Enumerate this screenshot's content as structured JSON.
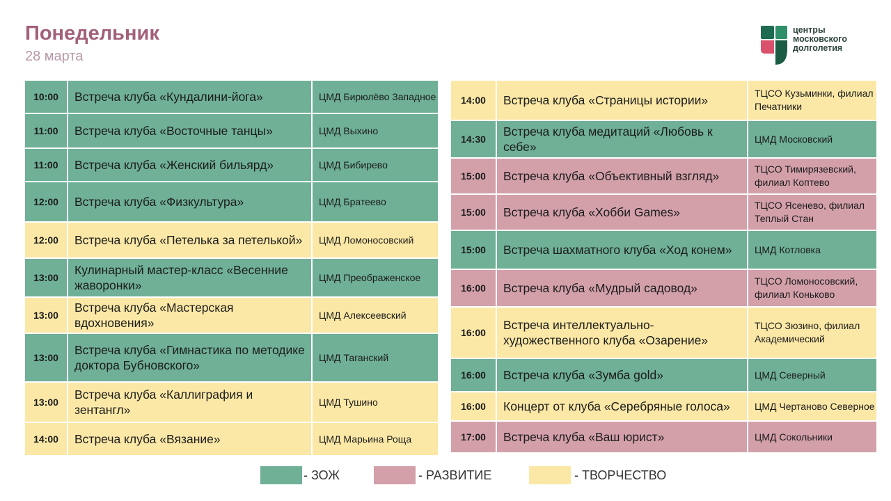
{
  "header": {
    "day": "Понедельник",
    "date": "28 марта"
  },
  "logo": {
    "line1": "центры",
    "line2": "московского",
    "line3": "долголетия"
  },
  "colors": {
    "zozh": "#6fb097",
    "razvitie": "#d3a0aa",
    "tvorchestvo": "#fbe8a6",
    "title": "#a2607a"
  },
  "left_schedule": [
    {
      "time": "10:00",
      "event": "Встреча клуба «Кундалини-йога»",
      "place": "ЦМД Бирюлёво Западное",
      "category": "zozh"
    },
    {
      "time": "11:00",
      "event": "Встреча клуба «Восточные танцы»",
      "place": "ЦМД Выхино",
      "category": "zozh"
    },
    {
      "time": "11:00",
      "event": "Встреча клуба «Женский бильярд»",
      "place": "ЦМД Бибирево",
      "category": "zozh"
    },
    {
      "time": "12:00",
      "event": "Встреча клуба «Физкультура»",
      "place": "ЦМД Братеево",
      "category": "zozh"
    },
    {
      "time": "12:00",
      "event": "Встреча клуба «Петелька за петелькой»",
      "place": "ЦМД Ломоносовский",
      "category": "tvorchestvo"
    },
    {
      "time": "13:00",
      "event": "Кулинарный мастер-класс «Весенние жаворонки»",
      "place": "ЦМД Преображенское",
      "category": "zozh"
    },
    {
      "time": "13:00",
      "event": "Встреча клуба «Мастерская вдохновения»",
      "place": "ЦМД Алексеевский",
      "category": "tvorchestvo"
    },
    {
      "time": "13:00",
      "event": "Встреча клуба «Гимнастика по методике доктора Бубновского»",
      "place": "ЦМД Таганский",
      "category": "zozh"
    },
    {
      "time": "13:00",
      "event": "Встреча клуба «Каллиграфия и зентангл»",
      "place": "ЦМД Тушино",
      "category": "tvorchestvo"
    },
    {
      "time": "14:00",
      "event": "Встреча клуба «Вязание»",
      "place": "ЦМД Марьина Роща",
      "category": "tvorchestvo"
    }
  ],
  "right_schedule": [
    {
      "time": "14:00",
      "event": "Встреча клуба «Страницы истории»",
      "place": "ТЦСО Кузьминки, филиал Печатники",
      "category": "tvorchestvo"
    },
    {
      "time": "14:30",
      "event": "Встреча клуба медитаций «Любовь к себе»",
      "place": "ЦМД Московский",
      "category": "zozh"
    },
    {
      "time": "15:00",
      "event": "Встреча клуба «Объективный взгляд»",
      "place": "ТЦСО Тимирязевский, филиал Коптево",
      "category": "razvitie"
    },
    {
      "time": "15:00",
      "event": "Встреча клуба «Хобби Games»",
      "place": "ТЦСО Ясенево, филиал Теплый Стан",
      "category": "razvitie"
    },
    {
      "time": "15:00",
      "event": "Встреча шахматного клуба «Ход конем»",
      "place": "ЦМД Котловка",
      "category": "zozh"
    },
    {
      "time": "16:00",
      "event": "Встреча клуба «Мудрый садовод»",
      "place": "ТЦСО Ломоносовский, филиал Коньково",
      "category": "razvitie"
    },
    {
      "time": "16:00",
      "event": "Встреча интеллектуально-художественного клуба «Озарение»",
      "place": "ТЦСО Зюзино, филиал Академический",
      "category": "tvorchestvo"
    },
    {
      "time": "16:00",
      "event": "Встреча клуба «Зумба gold»",
      "place": "ЦМД Северный",
      "category": "zozh"
    },
    {
      "time": "16:00",
      "event": "Концерт от клуба «Серебряные голоса»",
      "place": "ЦМД Чертаново Северное",
      "category": "tvorchestvo"
    },
    {
      "time": "17:00",
      "event": "Встреча клуба «Ваш юрист»",
      "place": "ЦМД Сокольники",
      "category": "razvitie"
    }
  ],
  "legend": [
    {
      "label": "- ЗОЖ",
      "category": "zozh"
    },
    {
      "label": "- РАЗВИТИЕ",
      "category": "razvitie"
    },
    {
      "label": "- ТВОРЧЕСТВО",
      "category": "tvorchestvo"
    }
  ]
}
